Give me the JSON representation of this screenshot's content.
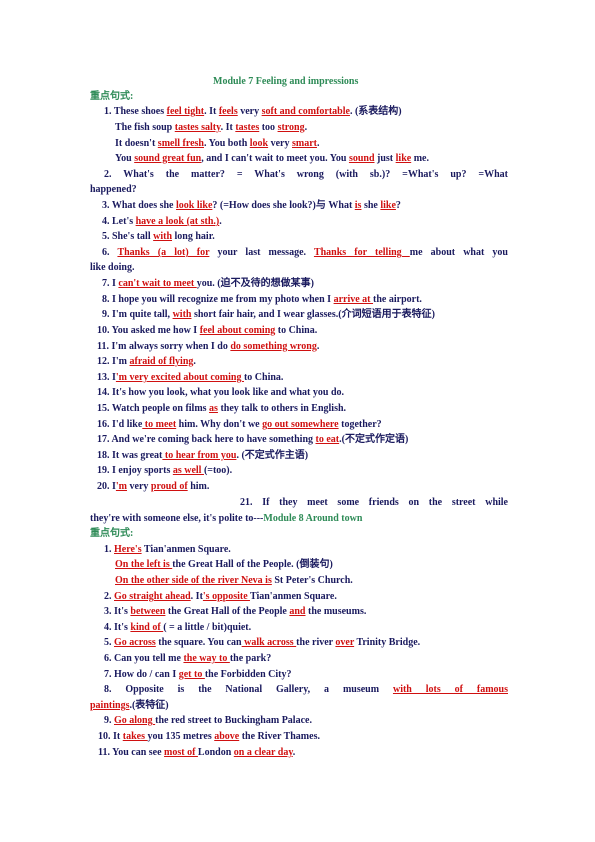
{
  "lines": [
    {
      "parts": [
        {
          "t": "Module 7 Feeling and impressions"
        }
      ]
    },
    {
      "parts": [
        {
          "t": "重点句式:"
        }
      ]
    },
    {
      "parts": [
        {
          "t": "1. These shoes "
        },
        {
          "t": "feel tight",
          "r": true
        },
        {
          "t": ".      It "
        },
        {
          "t": "feels",
          "r": true
        },
        {
          "t": " very "
        },
        {
          "t": "soft and comfortable",
          "r": true
        },
        {
          "t": ".    (系表结构)"
        }
      ]
    },
    {
      "parts": [
        {
          "t": "The fish soup "
        },
        {
          "t": "tastes salty",
          "r": true
        },
        {
          "t": ". It "
        },
        {
          "t": "tastes",
          "r": true
        },
        {
          "t": " too "
        },
        {
          "t": "strong",
          "r": true
        },
        {
          "t": "."
        }
      ]
    },
    {
      "parts": [
        {
          "t": "It doesn't "
        },
        {
          "t": "smell fresh",
          "r": true
        },
        {
          "t": ".      You both "
        },
        {
          "t": "look",
          "r": true
        },
        {
          "t": " very "
        },
        {
          "t": "smart",
          "r": true
        },
        {
          "t": "."
        }
      ]
    },
    {
      "parts": [
        {
          "t": "You "
        },
        {
          "t": "sound great fun",
          "r": true
        },
        {
          "t": ", and I can't wait to meet you. You "
        },
        {
          "t": "sound",
          "r": true
        },
        {
          "t": " just "
        },
        {
          "t": "like",
          "r": true
        },
        {
          "t": " me."
        }
      ]
    },
    {
      "parts": [
        {
          "t": "2.  What's  the  matter?  =  What's  wrong  (with  sb.)?  =What's  up?  =What"
        }
      ]
    },
    {
      "parts": [
        {
          "t": "happened?"
        }
      ]
    },
    {
      "parts": [
        {
          "t": "3. What does she "
        },
        {
          "t": "look like",
          "r": true
        },
        {
          "t": "? (=How does she look?)与 What "
        },
        {
          "t": "is",
          "r": true
        },
        {
          "t": " she "
        },
        {
          "t": "like",
          "r": true
        },
        {
          "t": "?"
        }
      ]
    },
    {
      "parts": [
        {
          "t": "4. Let's "
        },
        {
          "t": "have a look (at sth.)",
          "r": true
        },
        {
          "t": "."
        }
      ]
    },
    {
      "parts": [
        {
          "t": "5. She's tall "
        },
        {
          "t": "with",
          "r": true
        },
        {
          "t": " long hair."
        }
      ]
    },
    {
      "parts": [
        {
          "t": "6. "
        },
        {
          "t": "Thanks (a lot) for",
          "r": true
        },
        {
          "t": " your last message. "
        },
        {
          "t": "Thanks for telling ",
          "r": true
        },
        {
          "t": "me about what you"
        }
      ]
    },
    {
      "parts": [
        {
          "t": "like doing."
        }
      ]
    },
    {
      "parts": [
        {
          "t": "7. I "
        },
        {
          "t": "can't wait to meet ",
          "r": true
        },
        {
          "t": "you. (迫不及待的想做某事)"
        }
      ]
    },
    {
      "parts": [
        {
          "t": "8. I hope you will recognize me from my photo when I "
        },
        {
          "t": "arrive at ",
          "r": true
        },
        {
          "t": "the airport."
        }
      ]
    },
    {
      "parts": [
        {
          "t": "9. I'm quite tall, "
        },
        {
          "t": "with",
          "r": true
        },
        {
          "t": " short fair hair, and I wear glasses.(介词短语用于表特征)"
        }
      ]
    },
    {
      "parts": [
        {
          "t": "10. You asked me how I "
        },
        {
          "t": "feel about coming",
          "r": true
        },
        {
          "t": " to China."
        }
      ]
    },
    {
      "parts": [
        {
          "t": "11. I'm always sorry when I do "
        },
        {
          "t": "do something wrong",
          "r": true
        },
        {
          "t": "."
        }
      ]
    },
    {
      "parts": [
        {
          "t": "12. I'm "
        },
        {
          "t": "afraid of flying",
          "r": true
        },
        {
          "t": "."
        }
      ]
    },
    {
      "parts": [
        {
          "t": "13. I"
        },
        {
          "t": "'m very excited about coming ",
          "r": true
        },
        {
          "t": "to China."
        }
      ]
    },
    {
      "parts": [
        {
          "t": "14. It's how you look, what you look like and what you do."
        }
      ]
    },
    {
      "parts": [
        {
          "t": "15. Watch people on films "
        },
        {
          "t": "as",
          "r": true
        },
        {
          "t": " they talk to others in English."
        }
      ]
    },
    {
      "parts": [
        {
          "t": "16. I'd like"
        },
        {
          "t": " to meet",
          "r": true
        },
        {
          "t": " him. Why don't we "
        },
        {
          "t": "go out somewhere",
          "r": true
        },
        {
          "t": " together?"
        }
      ]
    },
    {
      "parts": [
        {
          "t": "17. And we're coming back here to have something "
        },
        {
          "t": "to eat",
          "r": true
        },
        {
          "t": ".(不定式作定语)"
        }
      ]
    },
    {
      "parts": [
        {
          "t": "18. It was great"
        },
        {
          "t": " to hear from you",
          "r": true
        },
        {
          "t": ". (不定式作主语)"
        }
      ]
    },
    {
      "parts": [
        {
          "t": "19. I enjoy sports "
        },
        {
          "t": "as well ",
          "r": true
        },
        {
          "t": "(=too)."
        }
      ]
    },
    {
      "parts": [
        {
          "t": "20. I"
        },
        {
          "t": "'m",
          "r": true
        },
        {
          "t": " very "
        },
        {
          "t": "proud of",
          "r": true
        },
        {
          "t": " him."
        }
      ]
    },
    {
      "parts": [
        {
          "t": "21.  If  they  meet  some  friends  on  the  street  while"
        }
      ]
    },
    {
      "parts": [
        {
          "t": "they're with someone else, it's polite to---"
        },
        {
          "t": "Module 8     Around town",
          "g": true
        }
      ]
    },
    {
      "parts": [
        {
          "t": "重点句式:"
        }
      ]
    },
    {
      "parts": [
        {
          "t": "1. "
        },
        {
          "t": "Here's",
          "r": true
        },
        {
          "t": " Tian'anmen Square."
        }
      ]
    },
    {
      "parts": [
        {
          "t": "On the left is ",
          "r": true
        },
        {
          "t": "the Great Hall of the People.                        (倒装句)"
        }
      ]
    },
    {
      "parts": [
        {
          "t": "On the other side of the river Neva is",
          "r": true
        },
        {
          "t": " St Peter's Church."
        }
      ]
    },
    {
      "parts": [
        {
          "t": "2. "
        },
        {
          "t": "Go straight ahead",
          "r": true
        },
        {
          "t": ". It"
        },
        {
          "t": "'s opposite ",
          "r": true
        },
        {
          "t": "Tian'anmen Square."
        }
      ]
    },
    {
      "parts": [
        {
          "t": "3. It's "
        },
        {
          "t": "between",
          "r": true
        },
        {
          "t": " the Great Hall of the People "
        },
        {
          "t": "and",
          "r": true
        },
        {
          "t": " the museums."
        }
      ]
    },
    {
      "parts": [
        {
          "t": "4. It's "
        },
        {
          "t": "kind of ",
          "r": true
        },
        {
          "t": "( = a little / bit)quiet."
        }
      ]
    },
    {
      "parts": [
        {
          "t": "5. "
        },
        {
          "t": "Go across",
          "r": true
        },
        {
          "t": " the square.    You can"
        },
        {
          "t": " walk across ",
          "r": true
        },
        {
          "t": "the river "
        },
        {
          "t": "over",
          "r": true
        },
        {
          "t": " Trinity Bridge."
        }
      ]
    },
    {
      "parts": [
        {
          "t": "6. Can you tell me "
        },
        {
          "t": "the way to ",
          "r": true
        },
        {
          "t": "the park?"
        }
      ]
    },
    {
      "parts": [
        {
          "t": "7. How do / can I "
        },
        {
          "t": "get to ",
          "r": true
        },
        {
          "t": "the Forbidden City?"
        }
      ]
    },
    {
      "parts": [
        {
          "t": "8.  Opposite  is  the  National  Gallery,  a  museum  "
        },
        {
          "t": "with  lots  of  famous",
          "r": true
        }
      ]
    },
    {
      "parts": [
        {
          "t": "paintings",
          "r": true
        },
        {
          "t": ".(表特征)"
        }
      ]
    },
    {
      "parts": [
        {
          "t": "9. "
        },
        {
          "t": "Go along ",
          "r": true
        },
        {
          "t": "the red street to Buckingham Palace."
        }
      ]
    },
    {
      "parts": [
        {
          "t": "10. It "
        },
        {
          "t": "takes ",
          "r": true
        },
        {
          "t": "you 135 metres "
        },
        {
          "t": "above",
          "r": true
        },
        {
          "t": " the River Thames."
        }
      ]
    },
    {
      "parts": [
        {
          "t": "11. You can see "
        },
        {
          "t": "most of ",
          "r": true
        },
        {
          "t": "London "
        },
        {
          "t": "on a clear day",
          "r": true
        },
        {
          "t": "."
        }
      ]
    }
  ]
}
